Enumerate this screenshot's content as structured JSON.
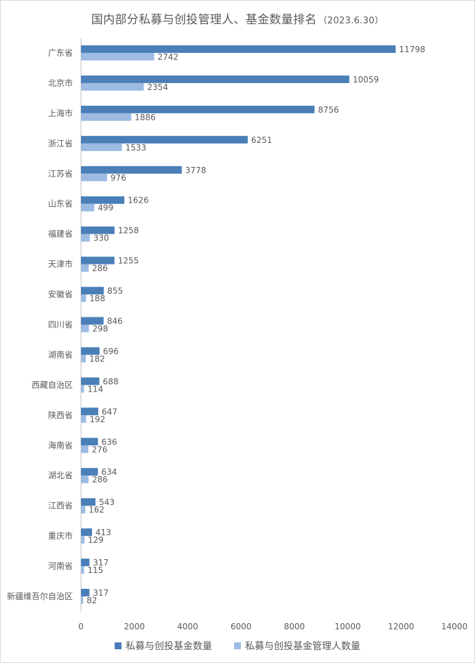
{
  "title": "国内部分私募与创投管理人、基金数量排名",
  "subtitle": "（2023.6.30）",
  "colors": {
    "series1": "#4a7fb8",
    "series2": "#9dbbe3",
    "text": "#595959",
    "axis": "#bfbfbf"
  },
  "chart_data": {
    "type": "bar",
    "orientation": "horizontal",
    "categories": [
      "广东省",
      "北京市",
      "上海市",
      "浙江省",
      "江苏省",
      "山东省",
      "福建省",
      "天津市",
      "安徽省",
      "四川省",
      "湖南省",
      "西藏自治区",
      "陕西省",
      "海南省",
      "湖北省",
      "江西省",
      "重庆市",
      "河南省",
      "新疆维吾尔自治区"
    ],
    "series": [
      {
        "name": "私募与创投基金数量",
        "values": [
          11798,
          10059,
          8756,
          6251,
          3778,
          1626,
          1258,
          1255,
          855,
          846,
          696,
          688,
          647,
          636,
          634,
          543,
          413,
          317,
          317
        ]
      },
      {
        "name": "私募与创投基金管理人数量",
        "values": [
          2742,
          2354,
          1886,
          1533,
          976,
          499,
          330,
          286,
          188,
          298,
          182,
          114,
          192,
          276,
          286,
          162,
          129,
          115,
          82
        ]
      }
    ],
    "xlim": [
      0,
      14000
    ],
    "xticks": [
      0,
      2000,
      4000,
      6000,
      8000,
      10000,
      12000,
      14000
    ],
    "grid": false,
    "legend": "bottom"
  }
}
